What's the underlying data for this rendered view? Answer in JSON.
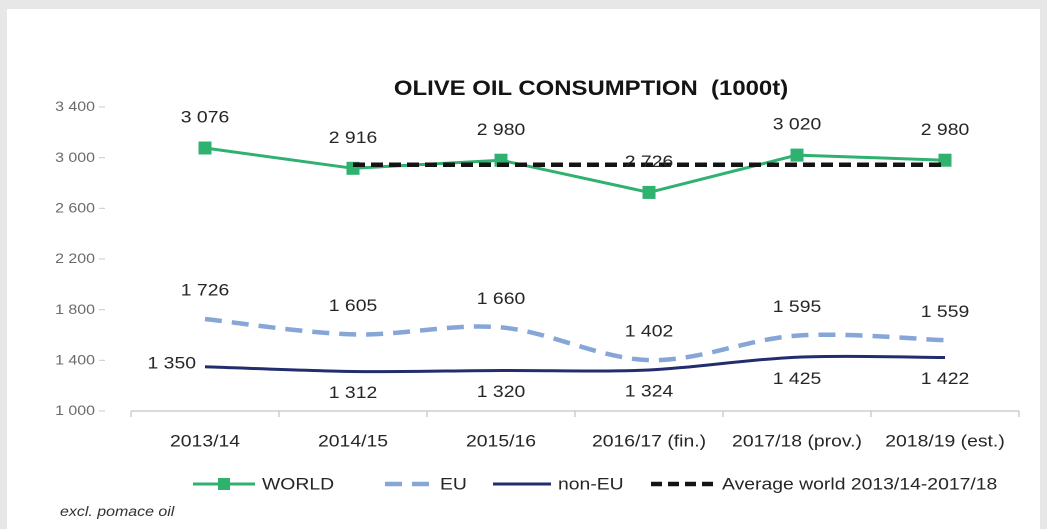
{
  "chart_data": {
    "type": "line",
    "title": "OLIVE OIL CONSUMPTION  (1000t)",
    "categories": [
      "2013/14",
      "2014/15",
      "2015/16",
      "2016/17 (fin.)",
      "2017/18 (prov.)",
      "2018/19 (est.)"
    ],
    "ylim": [
      1000,
      3400
    ],
    "yticks": [
      1000,
      1400,
      1800,
      2200,
      2600,
      3000,
      3400
    ],
    "grid": false,
    "legend": "bottom",
    "series": [
      {
        "name": "WORLD",
        "values": [
          3076,
          2916,
          2980,
          2726,
          3020,
          2980
        ],
        "color": "#2fb170",
        "line_style": "solid",
        "marker": "square",
        "smooth": false,
        "data_labels": true
      },
      {
        "name": "EU",
        "values": [
          1726,
          1605,
          1660,
          1402,
          1595,
          1559
        ],
        "color": "#86a6d8",
        "line_style": "dashed",
        "marker": "none",
        "smooth": true,
        "data_labels": true
      },
      {
        "name": "non-EU",
        "values": [
          1350,
          1312,
          1320,
          1324,
          1425,
          1422
        ],
        "color": "#222d6e",
        "line_style": "solid",
        "marker": "none",
        "smooth": true,
        "data_labels": true
      },
      {
        "name": "Average world 2013/14-2017/18",
        "values": [
          null,
          2944,
          2944,
          2944,
          2944,
          2944
        ],
        "color": "#141414",
        "line_style": "dashed",
        "marker": "none",
        "smooth": false,
        "data_labels": false
      }
    ],
    "note": "excl. pomace oil"
  }
}
